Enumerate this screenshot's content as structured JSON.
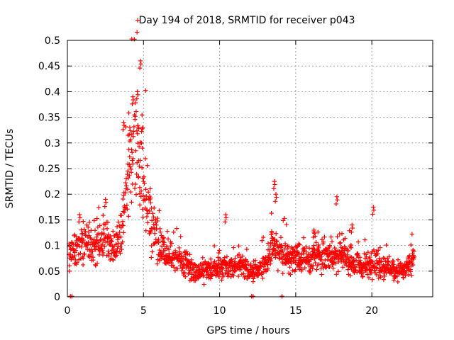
{
  "chart_data": {
    "type": "scatter",
    "title": "Day 194 of 2018, SRMTID for receiver p043",
    "xlabel": "GPS time / hours",
    "ylabel": "SRMTID / TECUs",
    "xlim": [
      0,
      24
    ],
    "ylim": [
      0,
      0.5
    ],
    "grid": true,
    "x_ticks": [
      0,
      5,
      10,
      15,
      20
    ],
    "y_ticks": [
      0,
      0.05,
      0.1,
      0.15,
      0.2,
      0.25,
      0.3,
      0.35,
      0.4,
      0.45,
      0.5
    ],
    "series": [
      {
        "name": "SRMTID",
        "marker": "plus",
        "color": "#ff0000",
        "profile": [
          [
            0.1,
            0.08
          ],
          [
            0.5,
            0.09
          ],
          [
            1.0,
            0.11
          ],
          [
            1.5,
            0.1
          ],
          [
            2.0,
            0.1
          ],
          [
            2.5,
            0.12
          ],
          [
            3.0,
            0.09
          ],
          [
            3.5,
            0.12
          ],
          [
            3.8,
            0.2
          ],
          [
            4.1,
            0.26
          ],
          [
            4.4,
            0.28
          ],
          [
            4.7,
            0.3
          ],
          [
            4.9,
            0.26
          ],
          [
            5.2,
            0.2
          ],
          [
            5.5,
            0.15
          ],
          [
            6.0,
            0.1
          ],
          [
            6.5,
            0.08
          ],
          [
            7.0,
            0.075
          ],
          [
            7.5,
            0.07
          ],
          [
            8.0,
            0.06
          ],
          [
            8.5,
            0.045
          ],
          [
            9.0,
            0.05
          ],
          [
            9.5,
            0.055
          ],
          [
            10.0,
            0.055
          ],
          [
            10.5,
            0.06
          ],
          [
            11.0,
            0.06
          ],
          [
            11.5,
            0.065
          ],
          [
            12.0,
            0.05
          ],
          [
            12.5,
            0.05
          ],
          [
            13.0,
            0.07
          ],
          [
            13.5,
            0.1
          ],
          [
            14.0,
            0.09
          ],
          [
            14.5,
            0.075
          ],
          [
            15.0,
            0.08
          ],
          [
            15.5,
            0.075
          ],
          [
            16.0,
            0.07
          ],
          [
            16.5,
            0.08
          ],
          [
            17.0,
            0.085
          ],
          [
            17.5,
            0.08
          ],
          [
            18.0,
            0.085
          ],
          [
            18.5,
            0.07
          ],
          [
            19.0,
            0.06
          ],
          [
            19.5,
            0.06
          ],
          [
            20.0,
            0.065
          ],
          [
            20.5,
            0.06
          ],
          [
            21.0,
            0.06
          ],
          [
            21.5,
            0.055
          ],
          [
            22.0,
            0.05
          ],
          [
            22.5,
            0.06
          ],
          [
            22.8,
            0.08
          ]
        ],
        "spikes": [
          [
            0.8,
            0.16
          ],
          [
            2.5,
            0.19
          ],
          [
            4.8,
            0.46
          ],
          [
            4.6,
            0.4
          ],
          [
            4.3,
            0.39
          ],
          [
            3.7,
            0.34
          ],
          [
            4.1,
            0.33
          ],
          [
            10.4,
            0.16
          ],
          [
            13.6,
            0.225
          ],
          [
            13.7,
            0.2
          ],
          [
            17.7,
            0.195
          ],
          [
            20.1,
            0.175
          ],
          [
            16.2,
            0.13
          ],
          [
            18.7,
            0.14
          ]
        ],
        "zeros": [
          0.2,
          0.3,
          12.1,
          12.2,
          14.1
        ]
      }
    ]
  }
}
